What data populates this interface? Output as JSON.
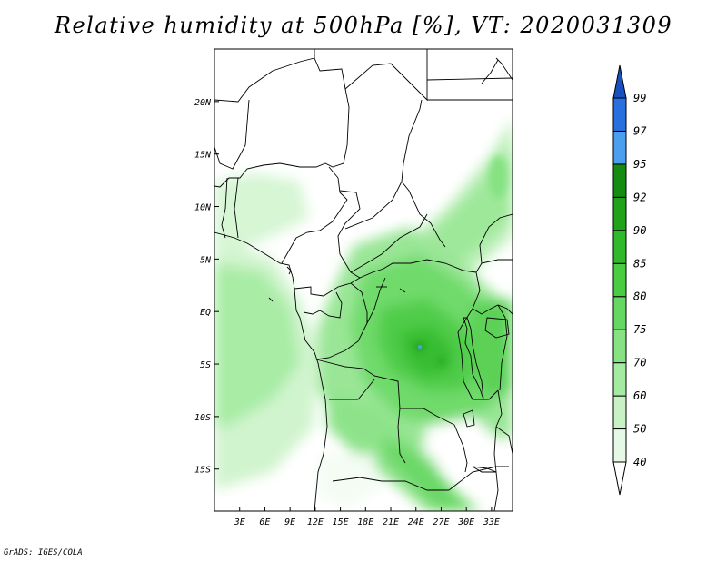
{
  "title": "Relative humidity at 500hPa [%], VT: 2020031309",
  "credit": "GrADS: IGES/COLA",
  "map": {
    "lon_range": [
      0,
      35.5
    ],
    "lat_range": [
      -19,
      25
    ],
    "lon_ticks": [
      {
        "value": 3,
        "label": "3E"
      },
      {
        "value": 6,
        "label": "6E"
      },
      {
        "value": 9,
        "label": "9E"
      },
      {
        "value": 12,
        "label": "12E"
      },
      {
        "value": 15,
        "label": "15E"
      },
      {
        "value": 18,
        "label": "18E"
      },
      {
        "value": 21,
        "label": "21E"
      },
      {
        "value": 24,
        "label": "24E"
      },
      {
        "value": 27,
        "label": "27E"
      },
      {
        "value": 30,
        "label": "30E"
      },
      {
        "value": 33,
        "label": "33E"
      }
    ],
    "lat_ticks": [
      {
        "value": 20,
        "label": "20N"
      },
      {
        "value": 15,
        "label": "15N"
      },
      {
        "value": 10,
        "label": "10N"
      },
      {
        "value": 5,
        "label": "5N"
      },
      {
        "value": 0,
        "label": "EQ"
      },
      {
        "value": -5,
        "label": "5S"
      },
      {
        "value": -10,
        "label": "10S"
      },
      {
        "value": -15,
        "label": "15S"
      }
    ]
  },
  "colorbar": {
    "levels": [
      "40",
      "50",
      "60",
      "70",
      "75",
      "80",
      "85",
      "90",
      "92",
      "95",
      "97",
      "99"
    ],
    "colors": [
      "#ffffff",
      "#e6f9e6",
      "#c8f2c6",
      "#a4eba2",
      "#86e282",
      "#66d861",
      "#48cc42",
      "#30b92a",
      "#1fa31a",
      "#138c10",
      "#4aa0ef",
      "#2870dd",
      "#1850c0"
    ]
  }
}
